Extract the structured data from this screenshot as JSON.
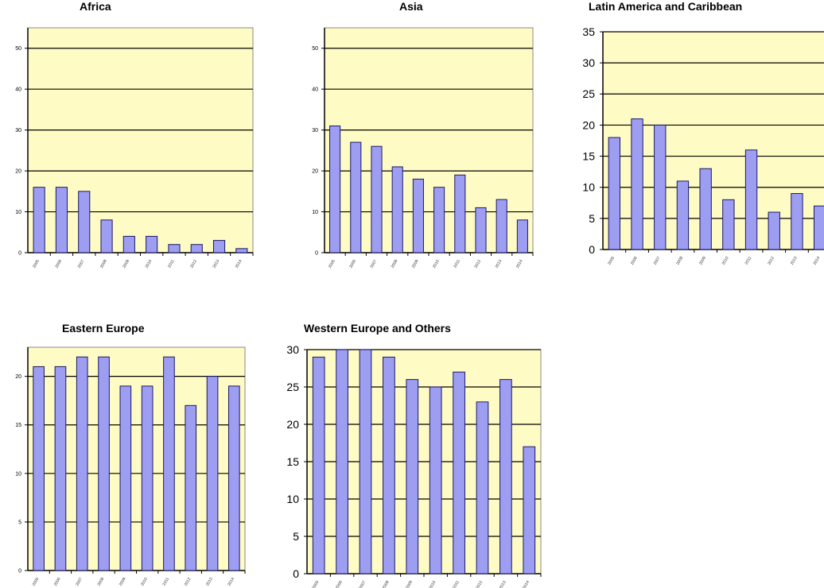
{
  "colors": {
    "plot_background": "#fffbc4",
    "bar_fill": "#9d9df2",
    "bar_stroke": "#1a1a66",
    "gridline": "#000000"
  },
  "chart_data": [
    {
      "type": "bar",
      "title": "Africa",
      "categories": [
        "2005",
        "2006",
        "2007",
        "2008",
        "2009",
        "2010",
        "2011",
        "2012",
        "2013",
        "2014"
      ],
      "values": [
        16,
        16,
        15,
        8,
        4,
        4,
        2,
        2,
        3,
        1
      ],
      "ylim": [
        0,
        55
      ],
      "yticks": [
        0,
        10,
        20,
        30,
        40,
        50
      ],
      "grid": true
    },
    {
      "type": "bar",
      "title": "Asia",
      "categories": [
        "2005",
        "2006",
        "2007",
        "2008",
        "2009",
        "2010",
        "2011",
        "2012",
        "2013",
        "2014"
      ],
      "values": [
        31,
        27,
        26,
        21,
        18,
        16,
        19,
        11,
        13,
        8
      ],
      "ylim": [
        0,
        55
      ],
      "yticks": [
        0,
        10,
        20,
        30,
        40,
        50
      ],
      "grid": true
    },
    {
      "type": "bar",
      "title": "Latin America and Caribbean",
      "categories": [
        "2005",
        "2006",
        "2007",
        "2008",
        "2009",
        "2010",
        "2011",
        "2012",
        "2013",
        "2014"
      ],
      "values": [
        18,
        21,
        20,
        11,
        13,
        8,
        16,
        6,
        9,
        7
      ],
      "ylim": [
        0,
        35
      ],
      "yticks": [
        0,
        5,
        10,
        15,
        20,
        25,
        30,
        35
      ],
      "grid": true
    },
    {
      "type": "bar",
      "title": "Eastern Europe",
      "categories": [
        "2005",
        "2006",
        "2007",
        "2008",
        "2009",
        "2010",
        "2011",
        "2012",
        "2013",
        "2014"
      ],
      "values": [
        21,
        21,
        22,
        22,
        19,
        19,
        22,
        17,
        20,
        19
      ],
      "ylim": [
        0,
        23
      ],
      "yticks": [
        0,
        5,
        10,
        15,
        20
      ],
      "grid": true
    },
    {
      "type": "bar",
      "title": "Western Europe and Others",
      "categories": [
        "2005",
        "2006",
        "2007",
        "2008",
        "2009",
        "2010",
        "2011",
        "2012",
        "2013",
        "2014"
      ],
      "values": [
        29,
        30,
        30,
        29,
        26,
        25,
        27,
        23,
        26,
        17
      ],
      "ylim": [
        0,
        30
      ],
      "yticks": [
        0,
        5,
        10,
        15,
        20,
        25,
        30
      ],
      "grid": true
    }
  ]
}
